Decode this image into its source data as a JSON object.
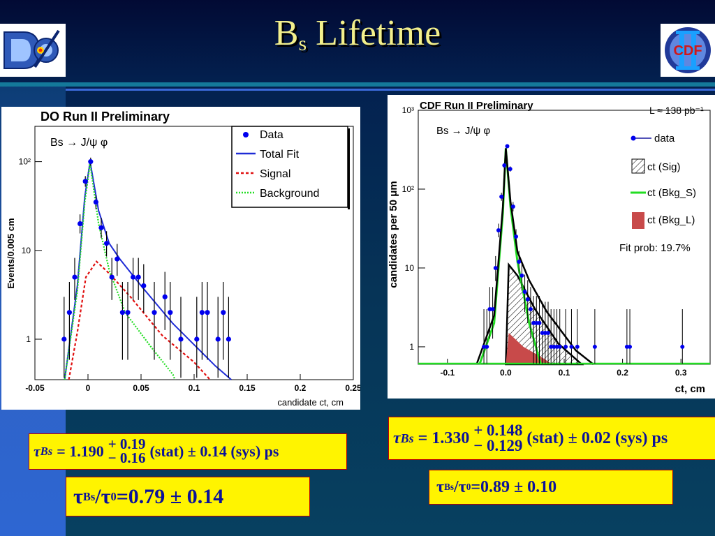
{
  "title": {
    "main": "B",
    "sub": "s",
    "rest": "Lifetime"
  },
  "logos": {
    "left": "D0-experiment-logo",
    "right": "CDF-II-logo",
    "right_text": "CDF"
  },
  "results": {
    "d0": {
      "tau": "τ",
      "tau_sub": "Bs",
      "eq": "= 1.190",
      "plus": "+ 0.19",
      "minus": "− 0.16",
      "tail": "(stat) ± 0.14 (sys) ps"
    },
    "cdf": {
      "tau": "τ",
      "tau_sub": "Bs",
      "eq": "= 1.330",
      "plus": "+ 0.148",
      "minus": "− 0.129",
      "tail": "(stat) ± 0.02 (sys) ps"
    },
    "ratio_d0": {
      "t1": "τ",
      "s1": "Bs",
      "slash": "/τ",
      "s2": "0",
      "val": "=0.79 ± 0.14"
    },
    "ratio_cdf": {
      "t1": "τ",
      "s1": "Bs",
      "slash": "/τ",
      "s2": "0",
      "val": "=0.89 ± 0.10"
    }
  },
  "chart_data": [
    {
      "type": "scatter",
      "title": "DO Run II Preliminary",
      "process": "Bs → J/ψ φ",
      "xlabel": "candidate ct,  cm",
      "ylabel": "Events/0.005 cm",
      "xlim": [
        -0.05,
        0.25
      ],
      "ylog": true,
      "ylim": [
        0.35,
        250
      ],
      "x_ticks": [
        "-0.05",
        "0",
        "0.05",
        "0.1",
        "0.15",
        "0.2",
        "0.25"
      ],
      "y_ticks": [
        "1",
        "10",
        "10²"
      ],
      "legend": {
        "placement": "top-right",
        "entries": [
          "Data",
          "Total Fit",
          "Signal",
          "Background"
        ]
      },
      "colors": {
        "data": "#0000ee",
        "total": "#1e2bd6",
        "signal": "#e01010",
        "background": "#22dd22"
      },
      "series": [
        {
          "name": "Data",
          "points": [
            [
              -0.0225,
              1
            ],
            [
              -0.0175,
              2
            ],
            [
              -0.0125,
              5
            ],
            [
              -0.0075,
              20
            ],
            [
              -0.0025,
              60
            ],
            [
              0.0025,
              100
            ],
            [
              0.0075,
              35
            ],
            [
              0.0125,
              18
            ],
            [
              0.0175,
              12
            ],
            [
              0.0225,
              5
            ],
            [
              0.0275,
              8
            ],
            [
              0.0325,
              2
            ],
            [
              0.0375,
              2
            ],
            [
              0.0425,
              5
            ],
            [
              0.0475,
              5
            ],
            [
              0.0525,
              4
            ],
            [
              0.0625,
              2
            ],
            [
              0.0725,
              3
            ],
            [
              0.0775,
              2
            ],
            [
              0.0875,
              1
            ],
            [
              0.1025,
              1
            ],
            [
              0.1075,
              2
            ],
            [
              0.1125,
              2
            ],
            [
              0.1225,
              1
            ],
            [
              0.1275,
              2
            ],
            [
              0.1325,
              1
            ]
          ]
        },
        {
          "name": "Total Fit",
          "points": [
            [
              -0.022,
              0.35
            ],
            [
              -0.01,
              4
            ],
            [
              -0.003,
              40
            ],
            [
              0.002,
              100
            ],
            [
              0.01,
              28
            ],
            [
              0.02,
              12
            ],
            [
              0.03,
              8
            ],
            [
              0.05,
              4
            ],
            [
              0.08,
              1.5
            ],
            [
              0.12,
              0.5
            ],
            [
              0.135,
              0.35
            ]
          ]
        },
        {
          "name": "Signal",
          "points": [
            [
              -0.018,
              0.35
            ],
            [
              -0.01,
              1.2
            ],
            [
              -0.002,
              5
            ],
            [
              0.008,
              7.5
            ],
            [
              0.02,
              5.5
            ],
            [
              0.04,
              3
            ],
            [
              0.07,
              1.1
            ],
            [
              0.1,
              0.55
            ],
            [
              0.115,
              0.35
            ]
          ]
        },
        {
          "name": "Background",
          "points": [
            [
              -0.022,
              0.35
            ],
            [
              -0.01,
              3.5
            ],
            [
              -0.003,
              35
            ],
            [
              0.002,
              95
            ],
            [
              0.01,
              20
            ],
            [
              0.02,
              6
            ],
            [
              0.035,
              2
            ],
            [
              0.06,
              0.8
            ],
            [
              0.08,
              0.4
            ],
            [
              0.082,
              0.35
            ]
          ]
        }
      ]
    },
    {
      "type": "scatter",
      "title": "CDF Run II Preliminary",
      "process": "Bs → J/ψ φ",
      "luminosity": "L ≈ 138 pb⁻¹",
      "xlabel": "ct, cm",
      "ylabel": "candidates per 50  μm",
      "xlim": [
        -0.15,
        0.35
      ],
      "ylog": true,
      "ylim": [
        0.6,
        1000
      ],
      "x_ticks": [
        "-0.1",
        "0.0",
        "0.1",
        "0.2",
        "0.3"
      ],
      "y_ticks": [
        "1",
        "10",
        "10²",
        "10³"
      ],
      "legend": {
        "placement": "right",
        "entries": [
          "data",
          "ct (Sig)",
          "ct (Bkg_S)",
          "ct (Bkg_L)"
        ]
      },
      "fit_prob": "Fit prob: 19.7%",
      "colors": {
        "data": "#0000ee",
        "fit": "#000000",
        "bkg_s": "#22dd22",
        "bkg_l": "#c84a4a"
      },
      "series": [
        {
          "name": "data",
          "points": [
            [
              -0.0375,
              1
            ],
            [
              -0.0325,
              1
            ],
            [
              -0.0275,
              3
            ],
            [
              -0.0225,
              3
            ],
            [
              -0.0175,
              10
            ],
            [
              -0.0125,
              30
            ],
            [
              -0.0075,
              80
            ],
            [
              -0.0025,
              200
            ],
            [
              0.0025,
              350
            ],
            [
              0.0075,
              180
            ],
            [
              0.0125,
              60
            ],
            [
              0.0175,
              25
            ],
            [
              0.0225,
              12
            ],
            [
              0.0275,
              8
            ],
            [
              0.0325,
              5
            ],
            [
              0.0375,
              4
            ],
            [
              0.0425,
              3
            ],
            [
              0.0475,
              2
            ],
            [
              0.0525,
              2
            ],
            [
              0.0575,
              2
            ],
            [
              0.0625,
              1.5
            ],
            [
              0.0675,
              1.5
            ],
            [
              0.0725,
              1.5
            ],
            [
              0.0775,
              1
            ],
            [
              0.0825,
              1
            ],
            [
              0.0875,
              1
            ],
            [
              0.0925,
              1
            ],
            [
              0.1025,
              1
            ],
            [
              0.1125,
              1
            ],
            [
              0.1225,
              1
            ],
            [
              0.1525,
              1
            ],
            [
              0.2075,
              1
            ],
            [
              0.2125,
              1
            ],
            [
              0.3025,
              1
            ]
          ]
        },
        {
          "name": "ct (Sig)",
          "points": [
            [
              0.0,
              0.6
            ],
            [
              0.005,
              11
            ],
            [
              0.02,
              8
            ],
            [
              0.05,
              3
            ],
            [
              0.09,
              1.1
            ],
            [
              0.13,
              0.6
            ]
          ]
        },
        {
          "name": "ct (Bkg_S)",
          "points": [
            [
              -0.045,
              0.6
            ],
            [
              -0.02,
              2
            ],
            [
              -0.005,
              50
            ],
            [
              0.0,
              330
            ],
            [
              0.008,
              60
            ],
            [
              0.02,
              12
            ],
            [
              0.04,
              2
            ],
            [
              0.06,
              0.6
            ]
          ]
        },
        {
          "name": "ct (Bkg_L)",
          "points": [
            [
              0.0,
              0.6
            ],
            [
              0.005,
              1.5
            ],
            [
              0.03,
              1
            ],
            [
              0.06,
              0.75
            ],
            [
              0.08,
              0.6
            ]
          ]
        },
        {
          "name": "Total",
          "points": [
            [
              -0.05,
              0.6
            ],
            [
              -0.02,
              2.5
            ],
            [
              -0.005,
              60
            ],
            [
              0.0,
              330
            ],
            [
              0.008,
              70
            ],
            [
              0.02,
              16
            ],
            [
              0.04,
              7
            ],
            [
              0.07,
              2.8
            ],
            [
              0.12,
              0.9
            ],
            [
              0.15,
              0.6
            ]
          ]
        }
      ]
    }
  ]
}
